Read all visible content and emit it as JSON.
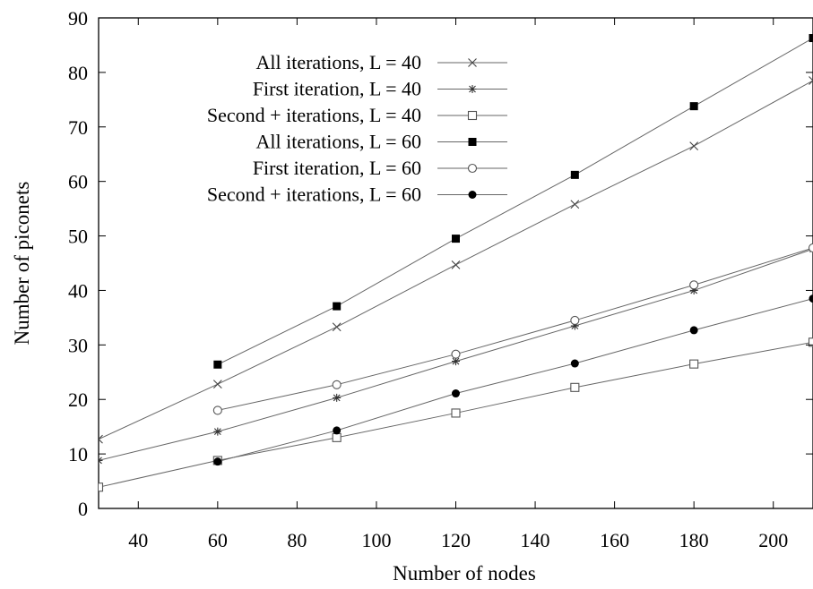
{
  "chart_data": {
    "type": "line",
    "xlabel": "Number of nodes",
    "ylabel": "Number of piconets",
    "xlim": [
      30,
      210
    ],
    "ylim": [
      0,
      90
    ],
    "xticks": [
      40,
      60,
      80,
      100,
      120,
      140,
      160,
      180,
      200
    ],
    "yticks": [
      0,
      10,
      20,
      30,
      40,
      50,
      60,
      70,
      80,
      90
    ],
    "grid": false,
    "legend_position": "top-left",
    "x": [
      30,
      60,
      90,
      120,
      150,
      180,
      210
    ],
    "series": [
      {
        "name": "All iterations, L = 40",
        "marker": "x-cross",
        "values": [
          12.7,
          22.8,
          33.3,
          44.7,
          55.8,
          66.5,
          78.5
        ]
      },
      {
        "name": "First iteration, L = 40",
        "marker": "asterisk",
        "values": [
          8.8,
          14.1,
          20.3,
          27.0,
          33.5,
          40.0,
          47.6
        ]
      },
      {
        "name": "Second + iterations, L = 40",
        "marker": "open-square",
        "values": [
          3.9,
          8.8,
          13.0,
          17.5,
          22.2,
          26.5,
          30.5
        ]
      },
      {
        "name": "All iterations, L = 60",
        "marker": "filled-square",
        "values": [
          null,
          26.4,
          37.1,
          49.5,
          61.2,
          73.8,
          86.3
        ]
      },
      {
        "name": "First iteration, L = 60",
        "marker": "open-circle",
        "values": [
          null,
          18.0,
          22.7,
          28.3,
          34.5,
          41.0,
          47.8
        ]
      },
      {
        "name": "Second + iterations, L = 60",
        "marker": "filled-circle",
        "values": [
          null,
          8.6,
          14.3,
          21.1,
          26.6,
          32.7,
          38.5
        ]
      }
    ]
  }
}
